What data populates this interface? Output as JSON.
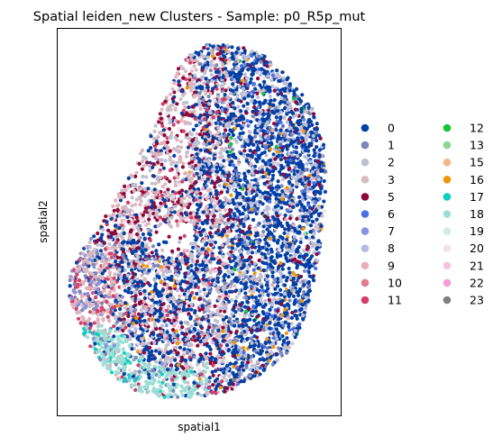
{
  "chart_data": {
    "type": "scatter",
    "title": "Spatial leiden_new Clusters - Sample: p0_R5p_mut",
    "xlabel": "spatial1",
    "ylabel": "spatial2",
    "grid": false,
    "ticks_shown": false,
    "legend_position": "right, outside plot, two columns",
    "series": [
      {
        "name": "0",
        "color": "#023fa5"
      },
      {
        "name": "1",
        "color": "#7d87b9"
      },
      {
        "name": "2",
        "color": "#bec1d4"
      },
      {
        "name": "3",
        "color": "#d6bcc0"
      },
      {
        "name": "5",
        "color": "#8e063b"
      },
      {
        "name": "6",
        "color": "#4a6fe3"
      },
      {
        "name": "7",
        "color": "#8595e1"
      },
      {
        "name": "8",
        "color": "#b5bbe3"
      },
      {
        "name": "9",
        "color": "#e6afb9"
      },
      {
        "name": "10",
        "color": "#e07b91"
      },
      {
        "name": "11",
        "color": "#d33f6a"
      },
      {
        "name": "12",
        "color": "#11c638"
      },
      {
        "name": "13",
        "color": "#8dd593"
      },
      {
        "name": "15",
        "color": "#f0b98d"
      },
      {
        "name": "16",
        "color": "#ef9708"
      },
      {
        "name": "17",
        "color": "#0fcfc0"
      },
      {
        "name": "18",
        "color": "#9cded6"
      },
      {
        "name": "19",
        "color": "#d5eae7"
      },
      {
        "name": "20",
        "color": "#f3e1eb"
      },
      {
        "name": "21",
        "color": "#f6c4e1"
      },
      {
        "name": "22",
        "color": "#f79cd4"
      },
      {
        "name": "23",
        "color": "#7f7f7f"
      }
    ]
  }
}
